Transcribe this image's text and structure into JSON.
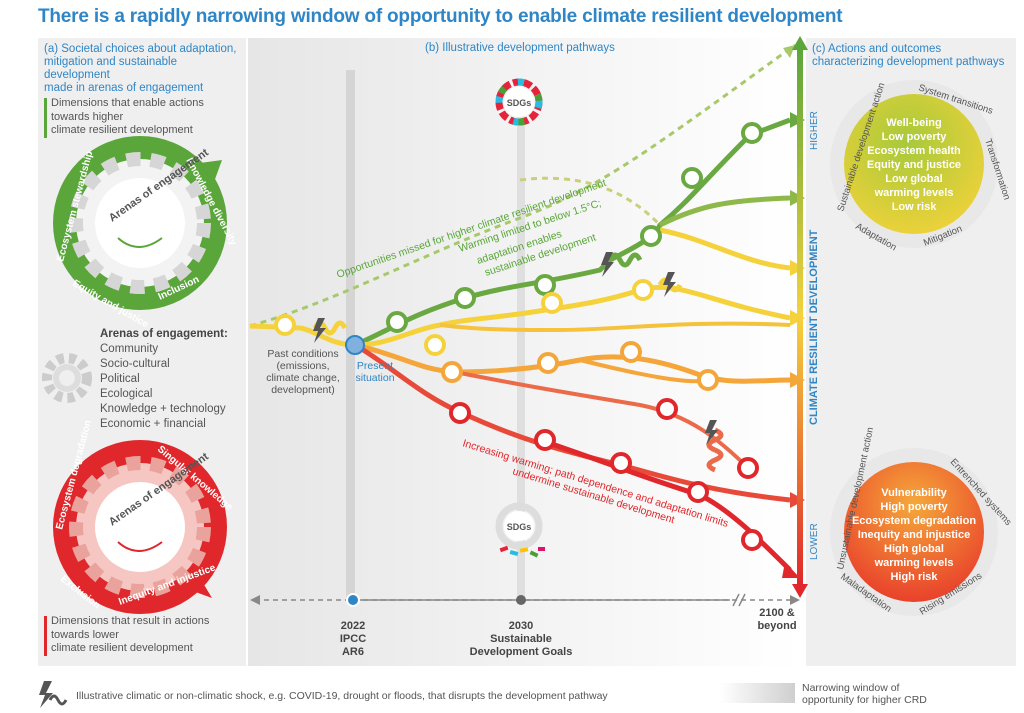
{
  "title": "There is a rapidly narrowing window of opportunity to enable climate resilient development",
  "panel_a": {
    "heading": [
      "(a) Societal choices about adaptation,",
      "mitigation and sustainable development",
      "made in arenas of engagement"
    ],
    "enable_text": [
      "Dimensions that enable actions",
      "towards higher",
      "climate resilient development"
    ],
    "green_gear": {
      "center": "Arenas of engagement",
      "ring": [
        "Ecosystem stewardship",
        "Knowledge diversity",
        "Inclusion",
        "Equity and justice"
      ]
    },
    "arenas_heading": "Arenas of engagement:",
    "arenas": [
      "Community",
      "Socio-cultural",
      "Political",
      "Ecological",
      "Knowledge + technology",
      "Economic + financial"
    ],
    "red_gear": {
      "center": "Arenas of engagement",
      "ring": [
        "Ecosystem degradation",
        "Singular knowledge",
        "Inequity and injustice",
        "Exclusion"
      ]
    },
    "result_text": [
      "Dimensions that result in actions",
      "towards lower",
      "climate resilient development"
    ]
  },
  "panel_b": {
    "heading": "(b) Illustrative development pathways",
    "sdg_label": "SDGs",
    "missed_label": "Opportunities missed for higher climate resilient development",
    "warming_label": [
      "Warming limited to below 1.5°C;",
      "adaptation enables",
      "sustainable development"
    ],
    "increasing_label": [
      "Increasing warming; path dependence and adaptation limits",
      "undermine sustainable development"
    ],
    "past_conditions": [
      "Past conditions",
      "(emissions,",
      "climate change,",
      "development)"
    ],
    "present": [
      "Present",
      "situation"
    ],
    "timeline": [
      {
        "year": "2022",
        "sub": [
          "IPCC",
          "AR6"
        ]
      },
      {
        "year": "2030",
        "sub": [
          "Sustainable",
          "Development Goals"
        ]
      },
      {
        "year": "2100 &",
        "sub": [
          "beyond"
        ]
      }
    ]
  },
  "panel_c": {
    "heading": [
      "(c) Actions and outcomes",
      "characterizing development pathways"
    ],
    "axis_label": "CLIMATE RESILIENT DEVELOPMENT",
    "higher": "HIGHER",
    "lower": "LOWER",
    "good_circle": {
      "ring": [
        "Sustainable development action",
        "System transitions",
        "Transformation",
        "Mitigation",
        "Adaptation"
      ],
      "items": [
        "Well-being",
        "Low poverty",
        "Ecosystem health",
        "Equity and justice",
        "Low global",
        "warming levels",
        "Low risk"
      ]
    },
    "bad_circle": {
      "ring": [
        "Unsustainable development action",
        "Entrenched systems",
        "Rising emissions",
        "Maladaptation"
      ],
      "items": [
        "Vulnerability",
        "High poverty",
        "Ecosystem degradation",
        "Inequity and injustice",
        "High global",
        "warming levels",
        "High risk"
      ]
    }
  },
  "footer": {
    "shock_text": "Illustrative climatic or non-climatic shock, e.g. COVID-19, drought or floods, that disrupts the development pathway",
    "window_text": [
      "Narrowing window of",
      "opportunity for higher CRD"
    ]
  },
  "colors": {
    "title_blue": "#2f86c6",
    "green": "#5aa63a",
    "yellow": "#f5d23c",
    "orange": "#f4a63a",
    "red": "#e0272b"
  }
}
